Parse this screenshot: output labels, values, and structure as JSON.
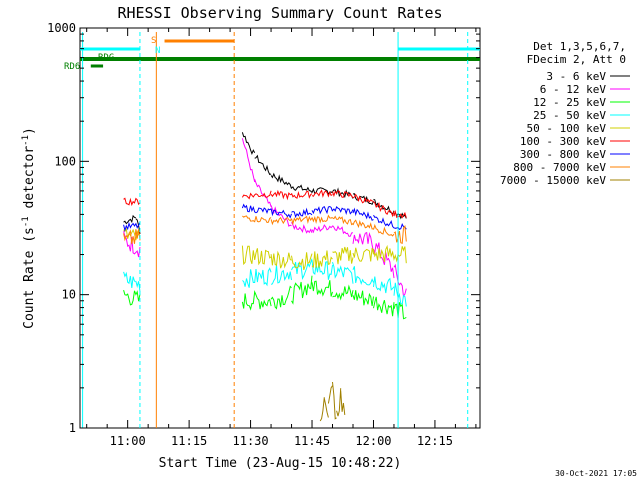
{
  "chart_data": {
    "type": "line",
    "title": "RHESSI Observing Summary Count Rates",
    "xlabel": "Start Time (23-Aug-15 10:48:22)",
    "ylabel_main": "Count Rate (s",
    "ylabel_sup1": "-1",
    "ylabel_mid": " detector",
    "ylabel_sup2": "-1",
    "ylabel_end": ")",
    "yscale": "log",
    "ylim": [
      1,
      1000
    ],
    "xlim": [
      "10:48:22",
      "12:26:00"
    ],
    "x_ticks": [
      "11:00",
      "11:15",
      "11:30",
      "11:45",
      "12:00",
      "12:15"
    ],
    "y_ticks": [
      "1",
      "10",
      "100",
      "1000"
    ],
    "legend_header": [
      "Det 1,3,5,6,7,",
      "FDecim 2, Att 0"
    ],
    "series": [
      {
        "name": "3 - 6 keV",
        "color": "#000000",
        "points": [
          [
            "10:59",
            35
          ],
          [
            "11:02",
            38
          ],
          [
            "11:03",
            30
          ],
          [
            "11:28",
            165
          ],
          [
            "11:31",
            110
          ],
          [
            "11:35",
            80
          ],
          [
            "11:40",
            65
          ],
          [
            "11:45",
            60
          ],
          [
            "11:50",
            60
          ],
          [
            "11:55",
            55
          ],
          [
            "12:00",
            50
          ],
          [
            "12:05",
            42
          ],
          [
            "12:08",
            38
          ]
        ]
      },
      {
        "name": "6 - 12 keV",
        "color": "#ff00ff",
        "points": [
          [
            "10:59",
            26
          ],
          [
            "11:03",
            22
          ],
          [
            "11:28",
            150
          ],
          [
            "11:31",
            70
          ],
          [
            "11:35",
            45
          ],
          [
            "11:40",
            33
          ],
          [
            "11:45",
            30
          ],
          [
            "11:50",
            33
          ],
          [
            "11:55",
            28
          ],
          [
            "12:00",
            24
          ],
          [
            "12:05",
            15
          ],
          [
            "12:08",
            10
          ]
        ]
      },
      {
        "name": "12 - 25 keV",
        "color": "#00ff00",
        "points": [
          [
            "10:59",
            10
          ],
          [
            "11:03",
            9
          ],
          [
            "11:28",
            9
          ],
          [
            "11:35",
            9
          ],
          [
            "11:40",
            10
          ],
          [
            "11:45",
            12
          ],
          [
            "11:50",
            11
          ],
          [
            "11:55",
            10
          ],
          [
            "12:00",
            9
          ],
          [
            "12:05",
            8
          ],
          [
            "12:08",
            7
          ]
        ]
      },
      {
        "name": "25 - 50 keV",
        "color": "#00ffff",
        "points": [
          [
            "10:59",
            13
          ],
          [
            "11:03",
            12
          ],
          [
            "11:28",
            13
          ],
          [
            "11:35",
            14
          ],
          [
            "11:40",
            15
          ],
          [
            "11:45",
            16
          ],
          [
            "11:50",
            15
          ],
          [
            "11:55",
            14
          ],
          [
            "12:00",
            13
          ],
          [
            "12:05",
            11
          ],
          [
            "12:08",
            9
          ]
        ]
      },
      {
        "name": "50 - 100 keV",
        "color": "#d0d000",
        "points": [
          [
            "10:59",
            28
          ],
          [
            "11:03",
            26
          ],
          [
            "11:28",
            20
          ],
          [
            "11:35",
            19
          ],
          [
            "11:40",
            18
          ],
          [
            "11:45",
            18
          ],
          [
            "11:50",
            19
          ],
          [
            "11:55",
            20
          ],
          [
            "12:00",
            20
          ],
          [
            "12:08",
            20
          ]
        ]
      },
      {
        "name": "100 - 300 keV",
        "color": "#ff0000",
        "points": [
          [
            "10:59",
            50
          ],
          [
            "11:03",
            50
          ],
          [
            "11:28",
            55
          ],
          [
            "11:35",
            57
          ],
          [
            "11:40",
            55
          ],
          [
            "11:45",
            57
          ],
          [
            "11:50",
            58
          ],
          [
            "11:55",
            55
          ],
          [
            "12:00",
            48
          ],
          [
            "12:05",
            40
          ],
          [
            "12:08",
            40
          ]
        ]
      },
      {
        "name": "300 - 800 keV",
        "color": "#0000ff",
        "points": [
          [
            "10:59",
            32
          ],
          [
            "11:03",
            33
          ],
          [
            "11:28",
            45
          ],
          [
            "11:35",
            42
          ],
          [
            "11:40",
            40
          ],
          [
            "11:45",
            42
          ],
          [
            "11:50",
            44
          ],
          [
            "11:55",
            42
          ],
          [
            "12:00",
            38
          ],
          [
            "12:05",
            33
          ],
          [
            "12:08",
            32
          ]
        ]
      },
      {
        "name": "800 - 7000 keV",
        "color": "#ff8000",
        "points": [
          [
            "10:59",
            25
          ],
          [
            "11:03",
            27
          ],
          [
            "11:28",
            38
          ],
          [
            "11:35",
            36
          ],
          [
            "11:40",
            36
          ],
          [
            "11:45",
            37
          ],
          [
            "11:50",
            37
          ],
          [
            "11:55",
            35
          ],
          [
            "12:00",
            32
          ],
          [
            "12:05",
            28
          ],
          [
            "12:08",
            28
          ]
        ]
      },
      {
        "name": "7000 - 15000 keV",
        "color": "#a08000",
        "points": [
          [
            "11:47",
            1.1
          ],
          [
            "11:48",
            1.9
          ],
          [
            "11:49",
            1.3
          ],
          [
            "11:50",
            1.9
          ],
          [
            "11:51",
            1.2
          ],
          [
            "11:52",
            1.8
          ],
          [
            "11:53",
            1.1
          ]
        ]
      }
    ],
    "flags": [
      {
        "name": "RDG",
        "label": "RDG",
        "color": "#008000"
      },
      {
        "name": "RD6",
        "label": "RD6",
        "color": "#008000"
      },
      {
        "name": "SAA",
        "label": "S",
        "color": "#ff8000"
      },
      {
        "name": "Night",
        "label": "N",
        "color": "#00ffff"
      }
    ],
    "timestamp": "30-Oct-2021 17:05"
  }
}
